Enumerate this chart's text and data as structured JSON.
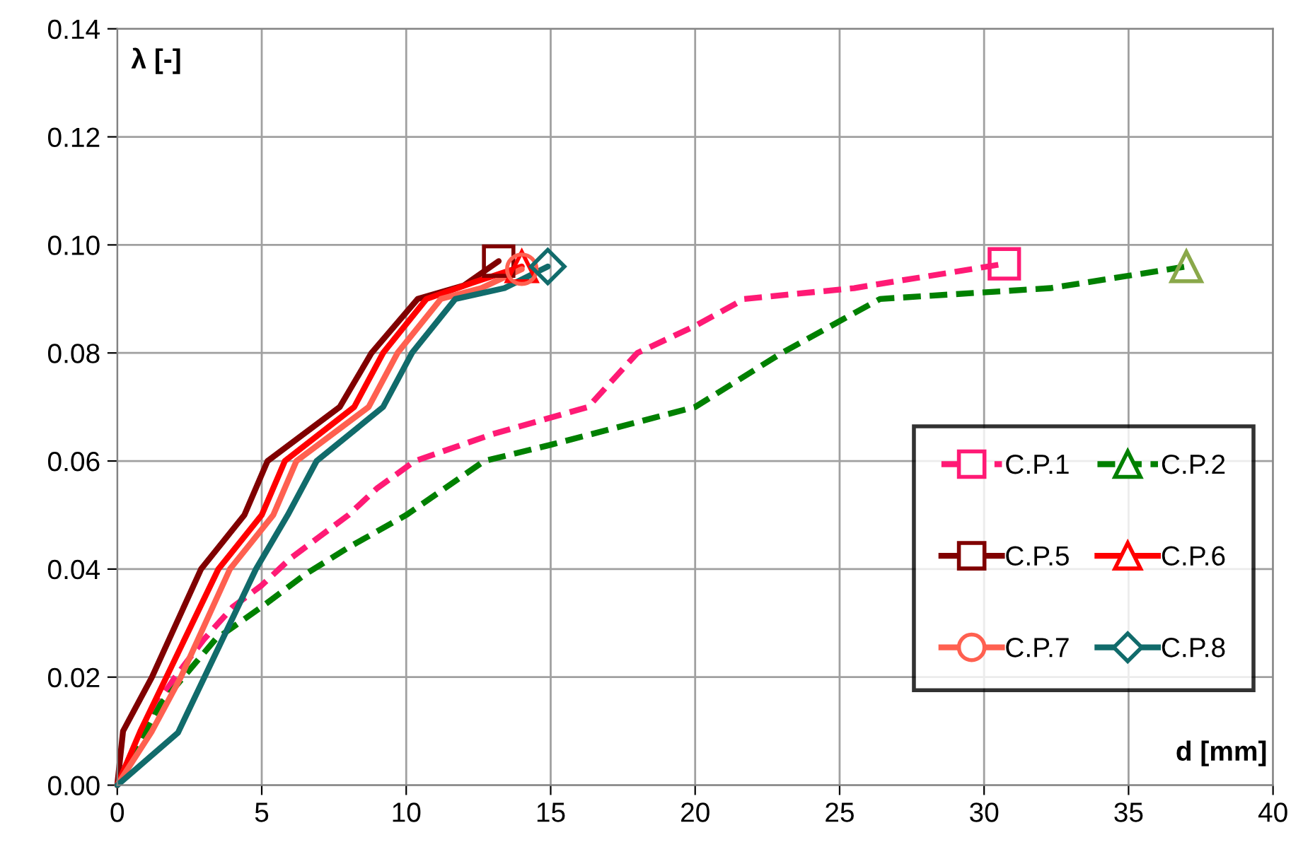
{
  "chart_data": {
    "type": "line",
    "xlabel": "d [mm]",
    "ylabel": "λ [-]",
    "xlim": [
      0,
      40
    ],
    "xticks": [
      0,
      5,
      10,
      15,
      20,
      25,
      30,
      35,
      40
    ],
    "ylim": [
      0,
      0.14
    ],
    "yticks": [
      {
        "value": 0,
        "label": "0.00"
      },
      {
        "value": 0.02,
        "label": "0.02"
      },
      {
        "value": 0.04,
        "label": "0.04"
      },
      {
        "value": 0.06,
        "label": "0.06"
      },
      {
        "value": 0.08,
        "label": "0.08"
      },
      {
        "value": 0.1,
        "label": "0.10"
      },
      {
        "value": 0.12,
        "label": "0.12"
      },
      {
        "value": 0.14,
        "label": "0.14"
      }
    ],
    "grid": true,
    "legend": "right",
    "series": [
      {
        "name": "C.P.1",
        "color": "#ff1a75",
        "line_style": "dashed",
        "x": [
          0,
          1,
          2,
          3,
          4,
          5,
          6,
          7,
          8,
          9,
          10.3,
          13,
          16.3,
          18,
          20,
          21.7,
          25.5,
          30.7
        ],
        "values": [
          0,
          0.012,
          0.02,
          0.027,
          0.033,
          0.037,
          0.042,
          0.046,
          0.05,
          0.055,
          0.06,
          0.065,
          0.07,
          0.08,
          0.085,
          0.09,
          0.092,
          0.0965
        ]
      },
      {
        "name": "C.P.2",
        "color": "#008000",
        "line_style": "dashed",
        "x": [
          0,
          1.5,
          3.4,
          5,
          6.5,
          8,
          10,
          12.7,
          15,
          20,
          23,
          26.4,
          32.3,
          37
        ],
        "values": [
          0,
          0.015,
          0.027,
          0.033,
          0.039,
          0.044,
          0.05,
          0.06,
          0.063,
          0.07,
          0.08,
          0.09,
          0.092,
          0.096
        ]
      },
      {
        "name": "C.P.5",
        "color": "#800000",
        "line_style": "solid",
        "x": [
          0,
          0.2,
          1.2,
          2.9,
          4.4,
          5.2,
          7.7,
          8.8,
          10.4,
          12,
          13.2
        ],
        "values": [
          0,
          0.01,
          0.02,
          0.04,
          0.05,
          0.06,
          0.07,
          0.08,
          0.09,
          0.0925,
          0.097
        ]
      },
      {
        "name": "C.P.6",
        "color": "#ff0000",
        "line_style": "solid",
        "x": [
          0,
          0.8,
          1.7,
          3.5,
          5,
          5.8,
          8.2,
          9.2,
          10.7,
          12.3,
          14
        ],
        "values": [
          0,
          0.01,
          0.02,
          0.04,
          0.05,
          0.06,
          0.07,
          0.08,
          0.09,
          0.093,
          0.096
        ]
      },
      {
        "name": "C.P.7",
        "color": "#ff6050",
        "line_style": "solid",
        "x": [
          0,
          1.2,
          2.2,
          3.9,
          5.4,
          6.2,
          8.7,
          9.7,
          11.2,
          12.6,
          14
        ],
        "values": [
          0,
          0.01,
          0.02,
          0.04,
          0.05,
          0.06,
          0.07,
          0.08,
          0.09,
          0.092,
          0.0955
        ]
      },
      {
        "name": "C.P.8",
        "color": "#116b6b",
        "line_style": "solid",
        "x": [
          0,
          2.1,
          4.8,
          5.9,
          6.9,
          9.2,
          10.2,
          11.7,
          13.4,
          14.9
        ],
        "values": [
          0,
          0.0097,
          0.04,
          0.05,
          0.06,
          0.07,
          0.08,
          0.09,
          0.092,
          0.096
        ]
      },
      {
        "type": "scatter",
        "color": "#ff1a75",
        "marker": "square",
        "x": [
          30.7
        ],
        "values": [
          0.0965
        ]
      },
      {
        "type": "scatter",
        "color": "#8aa84a",
        "marker": "triangle",
        "x": [
          37
        ],
        "values": [
          0.096
        ]
      },
      {
        "type": "scatter",
        "color": "#800000",
        "marker": "square",
        "x": [
          13.2
        ],
        "values": [
          0.097
        ]
      },
      {
        "type": "scatter",
        "color": "#ff0000",
        "marker": "triangle",
        "x": [
          14
        ],
        "values": [
          0.096
        ]
      },
      {
        "type": "scatter",
        "color": "#ff6050",
        "marker": "circle",
        "x": [
          14
        ],
        "values": [
          0.0955
        ]
      },
      {
        "type": "scatter",
        "color": "#116b6b",
        "marker": "diamond",
        "x": [
          14.9
        ],
        "values": [
          0.096
        ]
      }
    ]
  }
}
